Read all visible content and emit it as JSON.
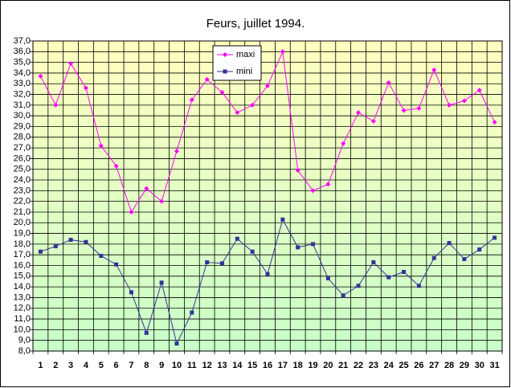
{
  "chart_data": {
    "type": "line",
    "title": "Feurs, juillet 1994.",
    "categories": [
      "1",
      "2",
      "3",
      "4",
      "5",
      "6",
      "7",
      "8",
      "9",
      "10",
      "11",
      "12",
      "13",
      "14",
      "15",
      "16",
      "17",
      "18",
      "19",
      "20",
      "21",
      "22",
      "23",
      "24",
      "25",
      "26",
      "27",
      "28",
      "29",
      "30",
      "31"
    ],
    "series": [
      {
        "name": "maxi",
        "color": "#ff00ff",
        "values": [
          33.7,
          31.0,
          34.9,
          32.6,
          27.2,
          25.3,
          21.0,
          23.2,
          22.0,
          26.7,
          31.5,
          33.4,
          32.2,
          30.3,
          31.0,
          32.8,
          36.0,
          24.9,
          23.0,
          23.6,
          27.4,
          30.3,
          29.5,
          33.1,
          30.5,
          30.7,
          34.3,
          31.0,
          31.4,
          32.4,
          29.4
        ]
      },
      {
        "name": "mini",
        "color": "#333399",
        "values": [
          17.3,
          17.8,
          18.4,
          18.2,
          16.9,
          16.1,
          13.5,
          9.7,
          14.4,
          8.7,
          11.6,
          16.3,
          16.2,
          18.5,
          17.3,
          15.2,
          20.3,
          17.7,
          18.0,
          14.8,
          13.2,
          14.1,
          16.3,
          14.9,
          15.4,
          14.1,
          16.7,
          18.1,
          16.6,
          17.5,
          18.6
        ]
      }
    ],
    "ylim": [
      8,
      37
    ],
    "yticks": [
      {
        "value": 8,
        "label": "8,0"
      },
      {
        "value": 9,
        "label": "9,0"
      },
      {
        "value": 10,
        "label": "10,0"
      },
      {
        "value": 11,
        "label": "11,0"
      },
      {
        "value": 12,
        "label": "12,0"
      },
      {
        "value": 13,
        "label": "13,0"
      },
      {
        "value": 14,
        "label": "14,0"
      },
      {
        "value": 15,
        "label": "15,0"
      },
      {
        "value": 16,
        "label": "16,0"
      },
      {
        "value": 17,
        "label": "17,0"
      },
      {
        "value": 18,
        "label": "18,0"
      },
      {
        "value": 19,
        "label": "19,0"
      },
      {
        "value": 20,
        "label": "20,0"
      },
      {
        "value": 21,
        "label": "21,0"
      },
      {
        "value": 22,
        "label": "22,0"
      },
      {
        "value": 23,
        "label": "23,0"
      },
      {
        "value": 24,
        "label": "24,0"
      },
      {
        "value": 25,
        "label": "25,0"
      },
      {
        "value": 26,
        "label": "26,0"
      },
      {
        "value": 27,
        "label": "27,0"
      },
      {
        "value": 28,
        "label": "28,0"
      },
      {
        "value": 29,
        "label": "29,0"
      },
      {
        "value": 30,
        "label": "30,0"
      },
      {
        "value": 31,
        "label": "31,0"
      },
      {
        "value": 32,
        "label": "32,0"
      },
      {
        "value": 33,
        "label": "33,0"
      },
      {
        "value": 34,
        "label": "34,0"
      },
      {
        "value": 35,
        "label": "35,0"
      },
      {
        "value": 36,
        "label": "36,0"
      },
      {
        "value": 37,
        "label": "37,0"
      }
    ],
    "grid": true
  }
}
